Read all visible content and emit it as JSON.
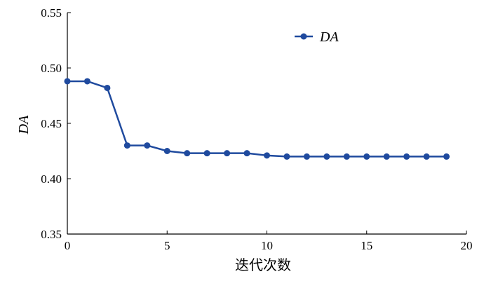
{
  "chart_data": {
    "type": "line",
    "title": "",
    "xlabel": "迭代次数",
    "ylabel": "DA",
    "xlim": [
      0,
      20
    ],
    "ylim": [
      0.35,
      0.55
    ],
    "xticks": [
      "0",
      "5",
      "10",
      "15",
      "20"
    ],
    "yticks": [
      "0.35",
      "0.40",
      "0.45",
      "0.50",
      "0.55"
    ],
    "grid": false,
    "legend_position": "top-right",
    "x": [
      0,
      1,
      2,
      3,
      4,
      5,
      6,
      7,
      8,
      9,
      10,
      11,
      12,
      13,
      14,
      15,
      16,
      17,
      18,
      19
    ],
    "series": [
      {
        "name": "DA",
        "color": "#1f4a9e",
        "values": [
          0.488,
          0.488,
          0.482,
          0.43,
          0.43,
          0.425,
          0.423,
          0.423,
          0.423,
          0.423,
          0.421,
          0.42,
          0.42,
          0.42,
          0.42,
          0.42,
          0.42,
          0.42,
          0.42,
          0.42
        ]
      }
    ]
  }
}
